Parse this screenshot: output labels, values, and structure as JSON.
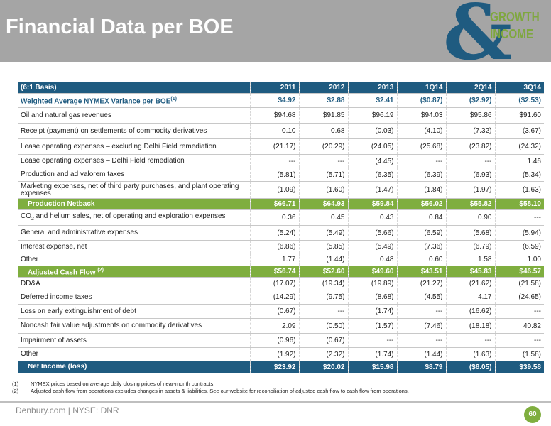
{
  "header": {
    "title": "Financial Data per BOE",
    "logo": {
      "symbol": "&",
      "word1": "GROWTH",
      "word2": "INCOME"
    }
  },
  "colors": {
    "navy": "#1f5b80",
    "green": "#7fae3f",
    "header_gray": "#a5a5a5"
  },
  "table": {
    "columns": [
      "(6:1 Basis)",
      "2011",
      "2012",
      "2013",
      "1Q14",
      "2Q14",
      "3Q14"
    ],
    "rows": [
      {
        "label": "Weighted Average NYMEX Variance per BOE",
        "sup": "(1)",
        "values": [
          "$4.92",
          "$2.88",
          "$2.41",
          "($0.87)",
          "($2.92)",
          "($2.53)"
        ]
      },
      {
        "label": "Oil and natural gas revenues",
        "values": [
          "$94.68",
          "$91.85",
          "$96.19",
          "$94.03",
          "$95.86",
          "$91.60"
        ]
      },
      {
        "label": "Receipt (payment) on settlements of commodity derivatives",
        "values": [
          "0.10",
          "0.68",
          "(0.03)",
          "(4.10)",
          "(7.32)",
          "(3.67)"
        ]
      },
      {
        "label": "Lease operating expenses – excluding Delhi Field remediation",
        "values": [
          "(21.17)",
          "(20.29)",
          "(24.05)",
          "(25.68)",
          "(23.82)",
          "(24.32)"
        ]
      },
      {
        "label": "Lease operating expenses – Delhi Field remediation",
        "values": [
          "---",
          "---",
          "(4.45)",
          "---",
          "---",
          "1.46"
        ]
      },
      {
        "label": "Production and ad valorem taxes",
        "values": [
          "(5.81)",
          "(5.71)",
          "(6.35)",
          "(6.39)",
          "(6.93)",
          "(5.34)"
        ]
      },
      {
        "label": "Marketing expenses, net of third party purchases, and plant operating expenses",
        "values": [
          "(1.09)",
          "(1.60)",
          "(1.47)",
          "(1.84)",
          "(1.97)",
          "(1.63)"
        ]
      },
      {
        "label": "Production Netback",
        "values": [
          "$66.71",
          "$64.93",
          "$59.84",
          "$56.02",
          "$55.82",
          "$58.10"
        ]
      },
      {
        "label_pre": "CO",
        "label_sub": "2",
        "label_post": " and helium sales, net of operating and exploration expenses",
        "values": [
          "0.36",
          "0.45",
          "0.43",
          "0.84",
          "0.90",
          "---"
        ]
      },
      {
        "label": "General and administrative expenses",
        "values": [
          "(5.24)",
          "(5.49)",
          "(5.66)",
          "(6.59)",
          "(5.68)",
          "(5.94)"
        ]
      },
      {
        "label": "Interest expense, net",
        "values": [
          "(6.86)",
          "(5.85)",
          "(5.49)",
          "(7.36)",
          "(6.79)",
          "(6.59)"
        ]
      },
      {
        "label": "Other",
        "values": [
          "1.77",
          "(1.44)",
          "0.48",
          "0.60",
          "1.58",
          "1.00"
        ]
      },
      {
        "label": "Adjusted Cash Flow ",
        "sup": "(2)",
        "values": [
          "$56.74",
          "$52.60",
          "$49.60",
          "$43.51",
          "$45.83",
          "$46.57"
        ]
      },
      {
        "label": "DD&A",
        "values": [
          "(17.07)",
          "(19.34)",
          "(19.89)",
          "(21.27)",
          "(21.62)",
          "(21.58)"
        ]
      },
      {
        "label": "Deferred income taxes",
        "values": [
          "(14.29)",
          "(9.75)",
          "(8.68)",
          "(4.55)",
          "4.17",
          "(24.65)"
        ]
      },
      {
        "label": "Loss on early extinguishment of debt",
        "values": [
          "(0.67)",
          "---",
          "(1.74)",
          "---",
          "(16.62)",
          "---"
        ]
      },
      {
        "label": "Noncash fair value adjustments on commodity derivatives",
        "values": [
          "2.09",
          "(0.50)",
          "(1.57)",
          "(7.46)",
          "(18.18)",
          "40.82"
        ]
      },
      {
        "label": "Impairment of assets",
        "values": [
          "(0.96)",
          "(0.67)",
          "---",
          "---",
          "---",
          "---"
        ]
      },
      {
        "label": "Other",
        "values": [
          "(1.92)",
          "(2.32)",
          "(1.74)",
          "(1.44)",
          "(1.63)",
          "(1.58)"
        ]
      },
      {
        "label": "Net Income (loss)",
        "values": [
          "$23.92",
          "$20.02",
          "$15.98",
          "$8.79",
          "($8.05)",
          "$39.58"
        ]
      }
    ]
  },
  "footnotes": [
    {
      "num": "(1)",
      "text": "NYMEX prices based on average daily closing prices of near-month contracts."
    },
    {
      "num": "(2)",
      "text": "Adjusted cash flow from operations excludes changes in assets & liabilities. See our website for reconciliation of adjusted cash flow to cash flow from operations."
    }
  ],
  "footer": {
    "text": "Denbury.com | NYSE: DNR",
    "page": "60"
  }
}
